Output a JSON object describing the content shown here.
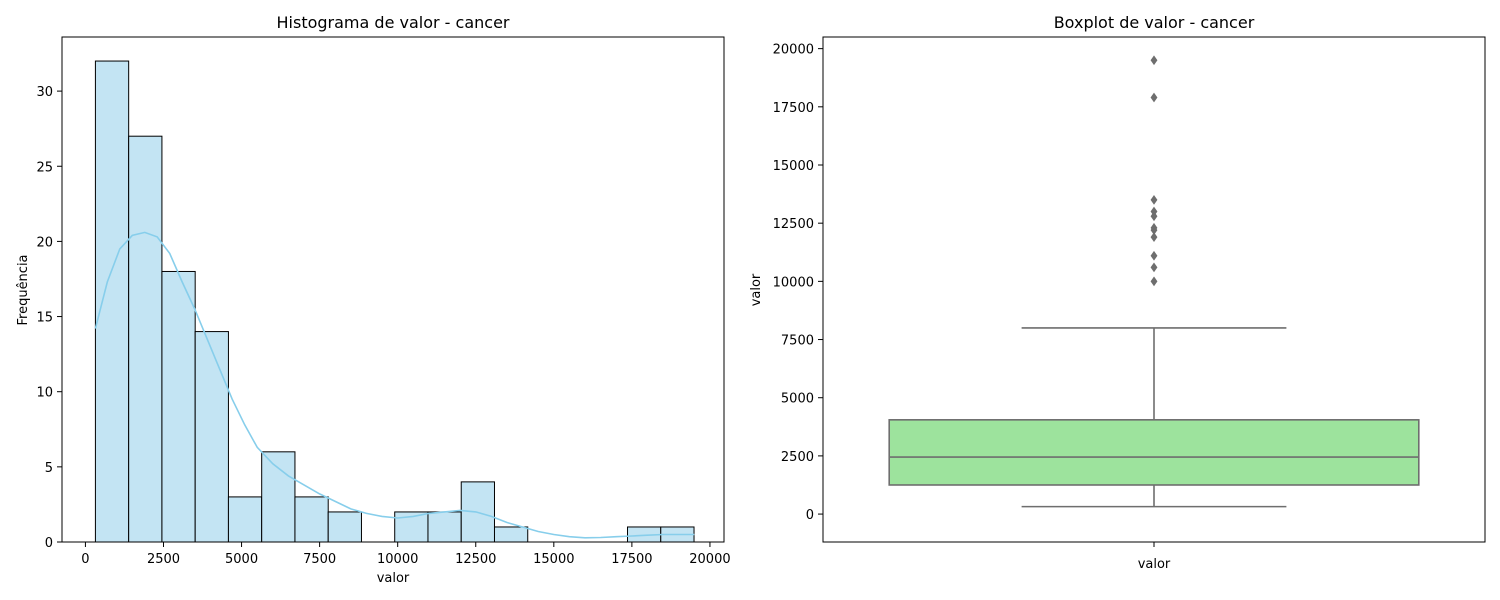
{
  "chart_data": [
    {
      "type": "histogram",
      "title": "Histograma de valor - cancer",
      "xlabel": "valor",
      "ylabel": "Frequência",
      "xlim": [
        -750,
        20450
      ],
      "ylim": [
        0,
        33.6
      ],
      "xticks": [
        0,
        2500,
        5000,
        7500,
        10000,
        12500,
        15000,
        17500,
        20000
      ],
      "yticks": [
        0,
        5,
        10,
        15,
        20,
        25,
        30
      ],
      "bin_start": 320,
      "bin_width": 1065,
      "counts": [
        32,
        27,
        18,
        14,
        3,
        6,
        3,
        2,
        0,
        2,
        2,
        4,
        1,
        0,
        0,
        0,
        1,
        1
      ],
      "bar_color": "#c3e4f3",
      "edge_color": "#000000",
      "kde_color": "#87ceeb",
      "kde": [
        [
          320,
          14.2
        ],
        [
          700,
          17.3
        ],
        [
          1100,
          19.5
        ],
        [
          1500,
          20.4
        ],
        [
          1900,
          20.6
        ],
        [
          2300,
          20.3
        ],
        [
          2700,
          19.2
        ],
        [
          3100,
          17.3
        ],
        [
          3500,
          15.5
        ],
        [
          3900,
          13.5
        ],
        [
          4300,
          11.5
        ],
        [
          4700,
          9.5
        ],
        [
          5100,
          7.8
        ],
        [
          5500,
          6.3
        ],
        [
          6000,
          5.2
        ],
        [
          6500,
          4.4
        ],
        [
          7000,
          3.8
        ],
        [
          7500,
          3.2
        ],
        [
          8000,
          2.7
        ],
        [
          8500,
          2.2
        ],
        [
          9000,
          1.9
        ],
        [
          9500,
          1.7
        ],
        [
          10000,
          1.6
        ],
        [
          10500,
          1.7
        ],
        [
          11000,
          1.9
        ],
        [
          11500,
          2.0
        ],
        [
          12000,
          2.1
        ],
        [
          12500,
          2.0
        ],
        [
          13000,
          1.7
        ],
        [
          13500,
          1.3
        ],
        [
          14000,
          1.0
        ],
        [
          14500,
          0.7
        ],
        [
          15000,
          0.5
        ],
        [
          15500,
          0.35
        ],
        [
          16000,
          0.28
        ],
        [
          16500,
          0.3
        ],
        [
          17000,
          0.35
        ],
        [
          17500,
          0.4
        ],
        [
          18000,
          0.45
        ],
        [
          18500,
          0.5
        ],
        [
          19500,
          0.5
        ]
      ]
    },
    {
      "type": "boxplot",
      "title": "Boxplot de valor - cancer",
      "xlabel": "valor",
      "ylabel": "valor",
      "category": "valor",
      "ylim": [
        -1200,
        20500
      ],
      "yticks": [
        0,
        2500,
        5000,
        7500,
        10000,
        12500,
        15000,
        17500,
        20000
      ],
      "whisker_low": 320,
      "q1": 1250,
      "median": 2450,
      "q3": 4050,
      "whisker_high": 8000,
      "outliers": [
        10000,
        10600,
        11100,
        11900,
        12200,
        12300,
        12800,
        13000,
        13500,
        17900,
        19500
      ],
      "box_color": "#9de39d",
      "line_color": "#6e6e6e"
    }
  ]
}
